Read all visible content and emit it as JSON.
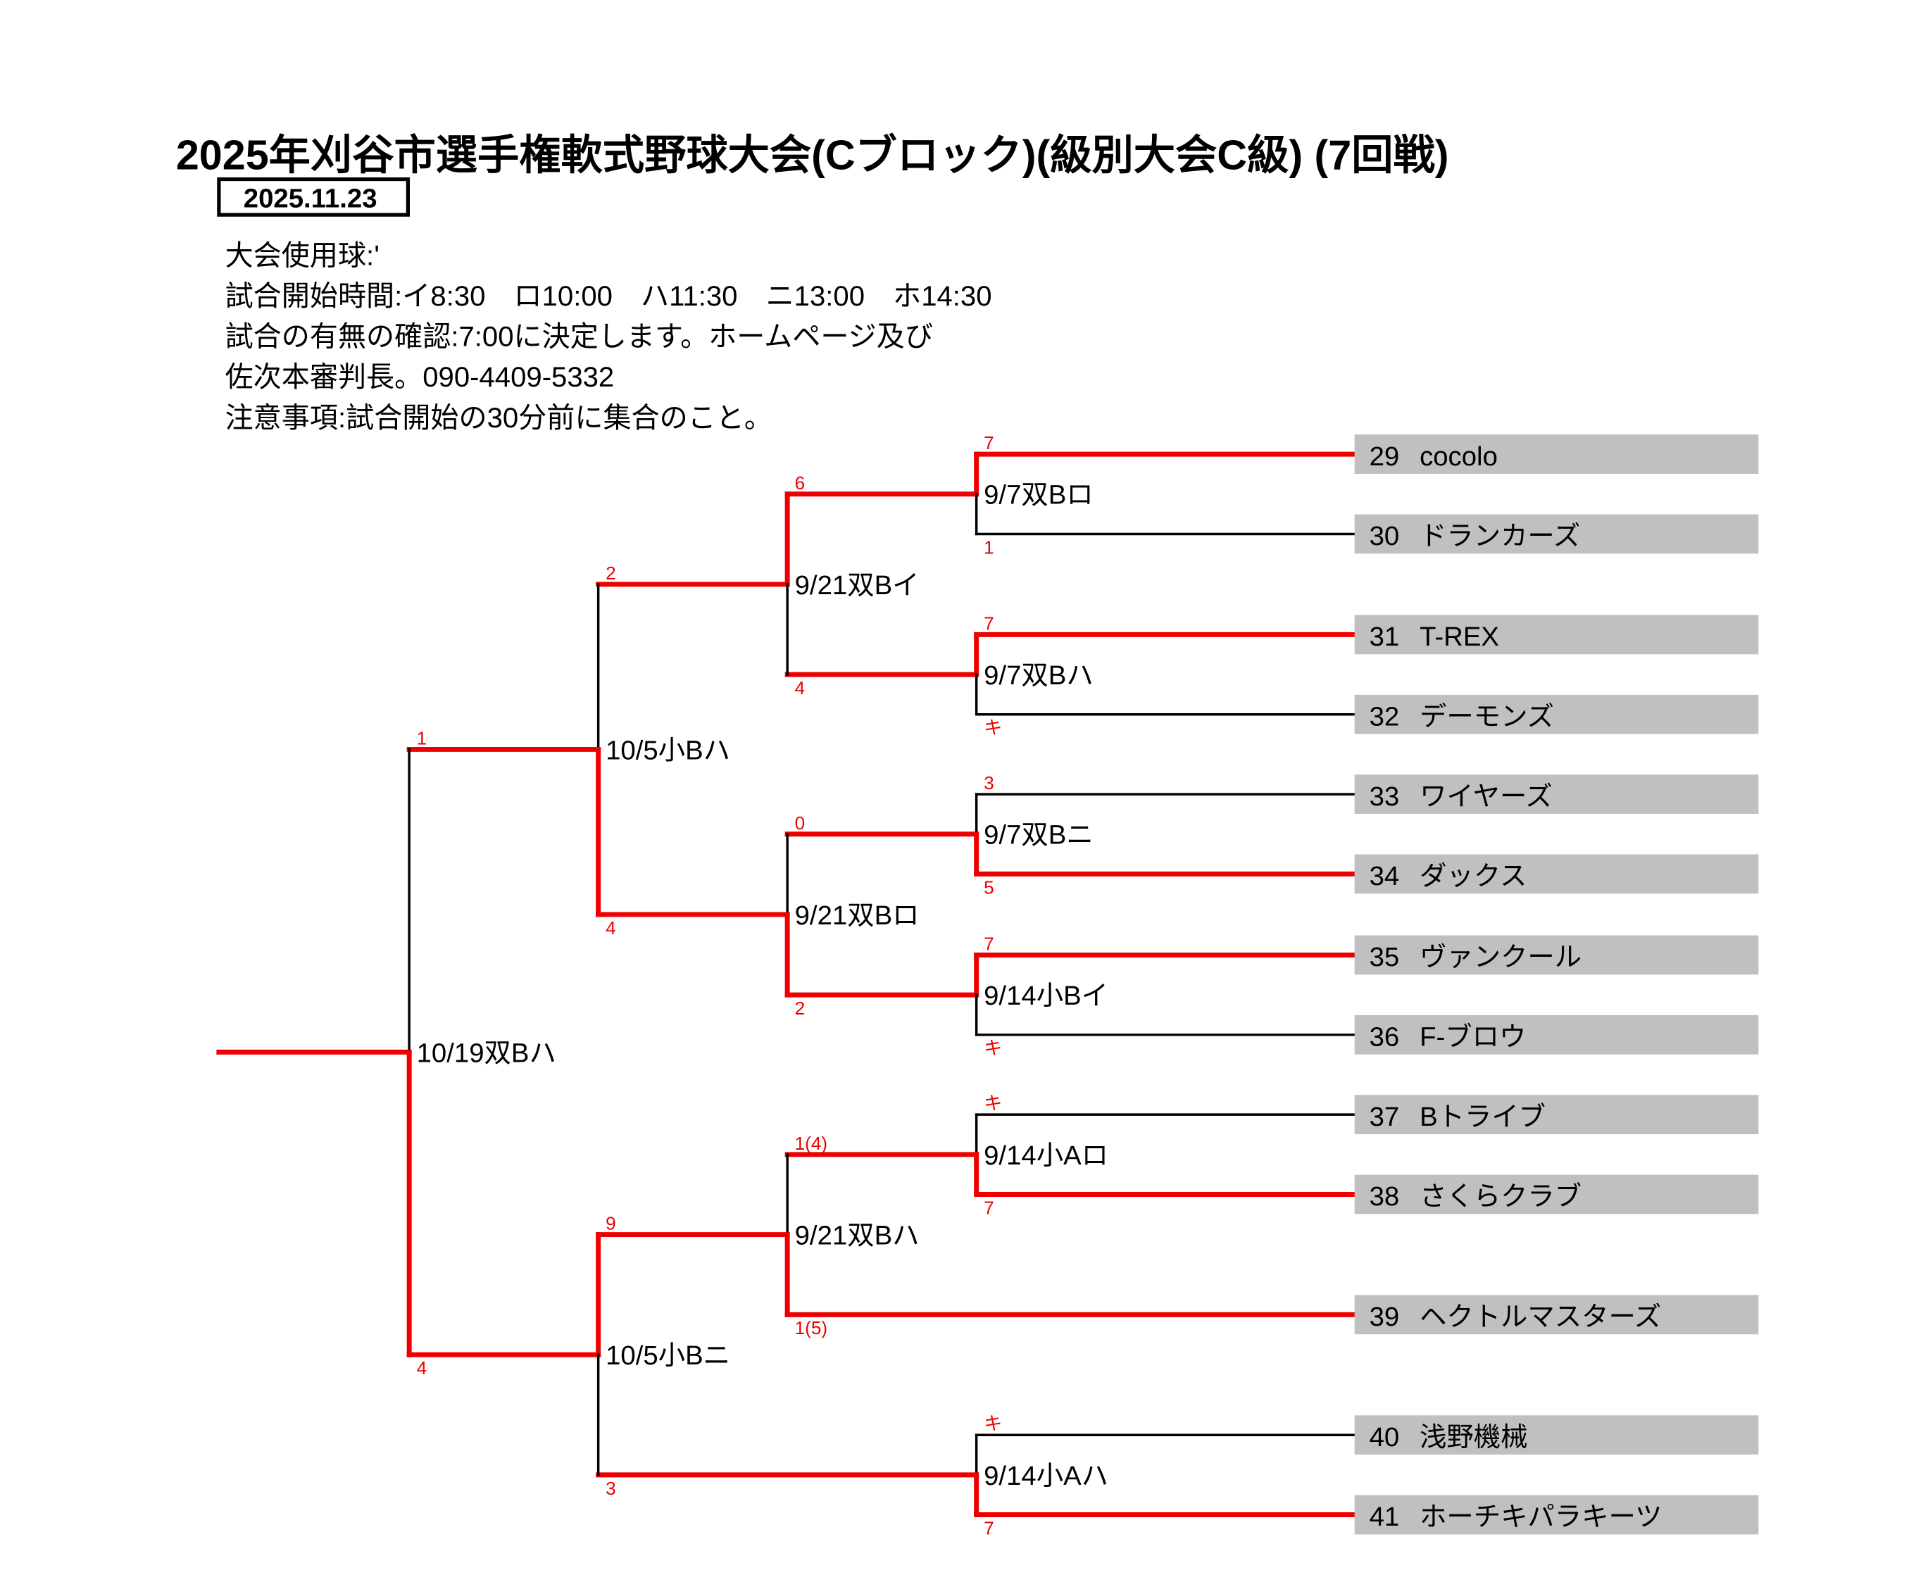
{
  "header": {
    "title": "2025年刈谷市選手権軟式野球大会(Cブロック)(級別大会C級) (7回戦)",
    "date": "2025.11.23",
    "info": [
      "大会使用球:'",
      "試合開始時間:イ8:30　ロ10:00　ハ11:30　ニ13:00　ホ14:30",
      "試合の有無の確認:7:00に決定します。ホームページ及び",
      "佐次本審判長。090-4409-5332",
      "注意事項:試合開始の30分前に集合のこと。"
    ]
  },
  "colors": {
    "win_line": "#ee0000",
    "line": "#000000",
    "team_box": "#c0c0c0",
    "score": "#ee0000"
  },
  "teams": [
    {
      "no": "29",
      "name": "cocolo"
    },
    {
      "no": "30",
      "name": "ドランカーズ"
    },
    {
      "no": "31",
      "name": "T-REX"
    },
    {
      "no": "32",
      "name": "デーモンズ"
    },
    {
      "no": "33",
      "name": "ワイヤーズ"
    },
    {
      "no": "34",
      "name": "ダックス"
    },
    {
      "no": "35",
      "name": "ヴァンクール"
    },
    {
      "no": "36",
      "name": "F-ブロウ"
    },
    {
      "no": "37",
      "name": "Bトライブ"
    },
    {
      "no": "38",
      "name": "さくらクラブ"
    },
    {
      "no": "39",
      "name": "ヘクトルマスターズ"
    },
    {
      "no": "40",
      "name": "浅野機械"
    },
    {
      "no": "41",
      "name": "ホーチキパラキーツ"
    }
  ],
  "bracket": {
    "label": "10/19双Bハ",
    "winner": "bottom",
    "top": {
      "score": "1",
      "node": {
        "label": "10/5小Bハ",
        "winner": "bottom",
        "top": {
          "score": "2",
          "node": {
            "label": "9/21双Bイ",
            "winner": "top",
            "top": {
              "score": "6",
              "node": {
                "label": "9/7双Bロ",
                "winner": "top",
                "top": {
                  "score": "7",
                  "node": {
                    "team": 0
                  }
                },
                "bottom": {
                  "score": "1",
                  "node": {
                    "team": 1
                  }
                }
              }
            },
            "bottom": {
              "score": "4",
              "node": {
                "label": "9/7双Bハ",
                "winner": "top",
                "top": {
                  "score": "7",
                  "node": {
                    "team": 2
                  }
                },
                "bottom": {
                  "score": "キ",
                  "node": {
                    "team": 3
                  }
                }
              }
            }
          }
        },
        "bottom": {
          "score": "4",
          "node": {
            "label": "9/21双Bロ",
            "winner": "bottom",
            "top": {
              "score": "0",
              "node": {
                "label": "9/7双Bニ",
                "winner": "bottom",
                "top": {
                  "score": "3",
                  "node": {
                    "team": 4
                  }
                },
                "bottom": {
                  "score": "5",
                  "node": {
                    "team": 5
                  }
                }
              }
            },
            "bottom": {
              "score": "2",
              "node": {
                "label": "9/14小Bイ",
                "winner": "top",
                "top": {
                  "score": "7",
                  "node": {
                    "team": 6
                  }
                },
                "bottom": {
                  "score": "キ",
                  "node": {
                    "team": 7
                  }
                }
              }
            }
          }
        }
      }
    },
    "bottom": {
      "score": "4",
      "node": {
        "label": "10/5小Bニ",
        "winner": "top",
        "top": {
          "score": "9",
          "node": {
            "label": "9/21双Bハ",
            "winner": "bottom",
            "top": {
              "score": "1(4)",
              "node": {
                "label": "9/14小Aロ",
                "winner": "bottom",
                "top": {
                  "score": "キ",
                  "node": {
                    "team": 8
                  }
                },
                "bottom": {
                  "score": "7",
                  "node": {
                    "team": 9
                  }
                }
              }
            },
            "bottom": {
              "score": "1(5)",
              "node": {
                "team": 10
              }
            }
          }
        },
        "bottom": {
          "score": "3",
          "node": {
            "label": "9/14小Aハ",
            "winner": "bottom",
            "top": {
              "score": "キ",
              "node": {
                "team": 11
              }
            },
            "bottom": {
              "score": "7",
              "node": {
                "team": 12
              }
            }
          }
        }
      }
    }
  }
}
